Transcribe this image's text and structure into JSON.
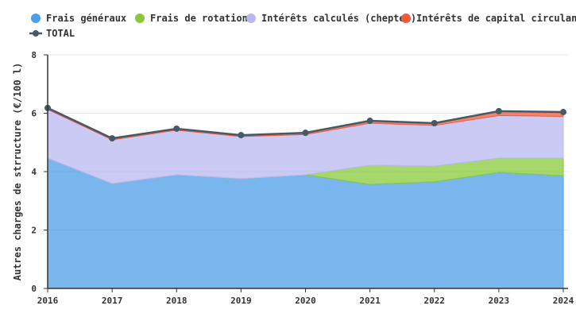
{
  "chart_data": {
    "type": "area",
    "stacked": true,
    "x": [
      "2016",
      "2017",
      "2018",
      "2019",
      "2020",
      "2021",
      "2022",
      "2023",
      "2024"
    ],
    "ylabel": "Autres charges de strructure (€/100 l)",
    "ylim": [
      0,
      8
    ],
    "yticks": [
      "0",
      "2",
      "4",
      "6",
      "8"
    ],
    "grid": true,
    "legend_position": "top",
    "series": [
      {
        "name": "Frais généraux",
        "color": "#4e9de8",
        "values": [
          4.46,
          3.59,
          3.89,
          3.76,
          3.89,
          3.56,
          3.65,
          3.97,
          3.86
        ]
      },
      {
        "name": "Frais de rotation",
        "color": "#88c93a",
        "values": [
          0,
          0,
          0,
          0,
          0,
          0.66,
          0.54,
          0.49,
          0.6
        ]
      },
      {
        "name": "Intérêts calculés (cheptel)",
        "color": "#b9b8f2",
        "values": [
          1.67,
          1.5,
          1.53,
          1.44,
          1.38,
          1.44,
          1.39,
          1.46,
          1.43
        ]
      },
      {
        "name": "Intérêts de capital circulant",
        "color": "#f05a3a",
        "values": [
          0.05,
          0.05,
          0.05,
          0.05,
          0.06,
          0.08,
          0.08,
          0.15,
          0.15
        ]
      }
    ],
    "total": {
      "name": "TOTAL",
      "color": "#455a64",
      "values": [
        6.18,
        5.14,
        5.47,
        5.25,
        5.33,
        5.74,
        5.66,
        6.07,
        6.04
      ]
    }
  }
}
